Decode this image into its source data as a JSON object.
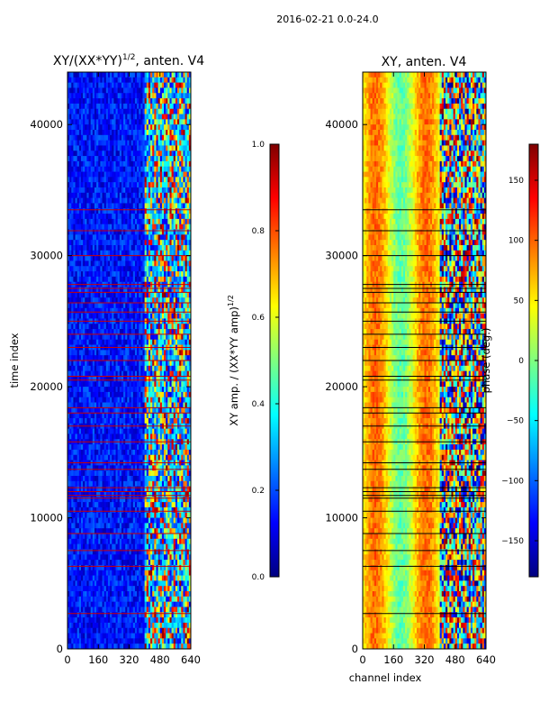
{
  "figure_title": "2016-02-21 0.0-24.0",
  "colors": {
    "jet": [
      "#00007f",
      "#0000ff",
      "#007fff",
      "#00ffff",
      "#7fff7f",
      "#ffff00",
      "#ff7f00",
      "#ff0000",
      "#7f0000"
    ],
    "flag_line_left": "#cc0000",
    "flag_line_right": "#000000"
  },
  "chart_data": [
    {
      "type": "heatmap",
      "title": "XY/(XX*YY)",
      "title_exponent": "1/2",
      "title_suffix": ", anten. V4",
      "xlabel": "",
      "ylabel": "time index",
      "xlim": [
        0,
        640
      ],
      "ylim": [
        0,
        44000
      ],
      "xticks": [
        0,
        160,
        320,
        480,
        640
      ],
      "yticks": [
        0,
        10000,
        20000,
        30000,
        40000
      ],
      "colorbar": {
        "label": "XY amp. / (XX*YY amp)",
        "label_exponent": "1/2",
        "range": [
          0.0,
          1.0
        ],
        "ticks": [
          "0.0",
          "0.2",
          "0.4",
          "0.6",
          "0.8",
          "1.0"
        ]
      },
      "flagged_rows": [
        2700,
        6300,
        7500,
        8800,
        10500,
        11500,
        11700,
        12000,
        12300,
        13700,
        14200,
        15800,
        17000,
        18000,
        18400,
        20500,
        20800,
        22000,
        23000,
        24000,
        25000,
        25700,
        26400,
        27200,
        27500,
        27800,
        30000,
        31900,
        33500
      ],
      "description_bands": "low amplitude (0.0-0.3) over channels 0-400; mixed high amplitude (0.3-1.0) over channels 400-640"
    },
    {
      "type": "heatmap",
      "title": "XY, anten. V4",
      "xlabel": "channel index",
      "ylabel": "",
      "xlim": [
        0,
        640
      ],
      "ylim": [
        0,
        44000
      ],
      "xticks": [
        0,
        160,
        320,
        480,
        640
      ],
      "yticks": [
        0,
        10000,
        20000,
        30000,
        40000
      ],
      "colorbar": {
        "label": "phase (deg.)",
        "range": [
          -180,
          180
        ],
        "ticks": [
          "150",
          "100",
          "50",
          "0",
          "−50",
          "−100",
          "−150"
        ]
      },
      "flagged_rows": [
        2700,
        6300,
        7500,
        8800,
        10500,
        11500,
        11700,
        12000,
        12300,
        13700,
        14200,
        15800,
        17000,
        18000,
        18400,
        20500,
        20800,
        22000,
        23000,
        24000,
        25000,
        25700,
        26400,
        27200,
        27500,
        27800,
        30000,
        31900,
        33500
      ],
      "description_bands": "phase mostly 40-130 deg over channels 0-400; scattered phases over channels 400-640"
    }
  ]
}
